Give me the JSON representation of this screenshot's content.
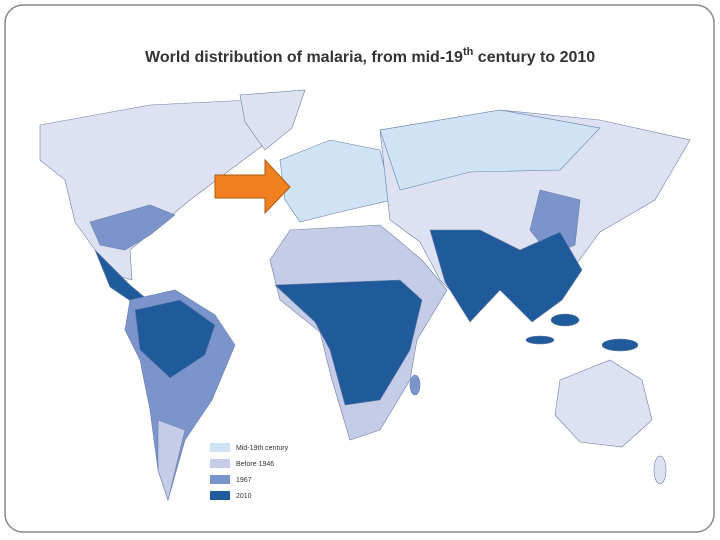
{
  "title": {
    "main": "World distribution of malaria, from mid-19",
    "sup": "th",
    "end": " century to 2010"
  },
  "legend": [
    "Mid-19th century",
    "Before 1946",
    "1967",
    "2010"
  ]
}
